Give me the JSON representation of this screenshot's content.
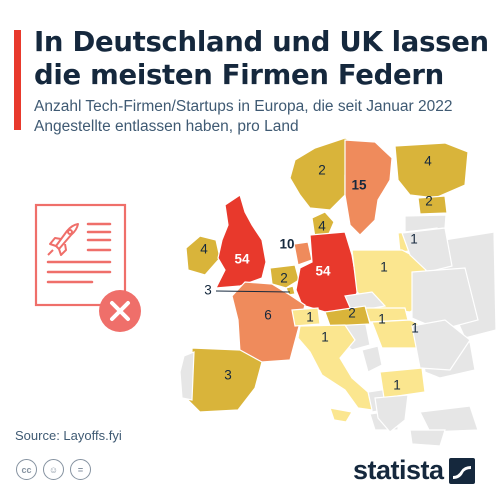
{
  "header": {
    "title": "In Deutschland und UK lassen die meisten Firmen Federn",
    "subtitle": "Anzahl Tech-Firmen/Startups in Europa, die seit Januar 2022 Angestellte entlassen haben, pro Land"
  },
  "map_data": {
    "type": "choropleth",
    "unit": "Anzahl Firmen",
    "regions": [
      {
        "country": "Norway",
        "value": 2
      },
      {
        "country": "Sweden",
        "value": 15
      },
      {
        "country": "Finland",
        "value": 4
      },
      {
        "country": "Estonia",
        "value": 2
      },
      {
        "country": "Ireland",
        "value": 4
      },
      {
        "country": "United Kingdom",
        "value": 54
      },
      {
        "country": "Denmark",
        "value": 4
      },
      {
        "country": "Netherlands",
        "value": 10
      },
      {
        "country": "Belgium",
        "value": 2
      },
      {
        "country": "Luxembourg",
        "value": 3
      },
      {
        "country": "Germany",
        "value": 54
      },
      {
        "country": "Lithuania",
        "value": 1
      },
      {
        "country": "Poland",
        "value": 1
      },
      {
        "country": "France",
        "value": 6
      },
      {
        "country": "Switzerland",
        "value": 1
      },
      {
        "country": "Austria",
        "value": 2
      },
      {
        "country": "Slovakia",
        "value": 1
      },
      {
        "country": "Italy",
        "value": 1
      },
      {
        "country": "Hungary",
        "value": 1
      },
      {
        "country": "Spain",
        "value": 3
      },
      {
        "country": "Bulgaria",
        "value": 1
      }
    ],
    "colors": {
      "high": "#e8392c",
      "medium_high": "#ef8b5c",
      "medium": "#d9b43a",
      "low": "#fbe68f",
      "no_data": "#e6e6e6"
    }
  },
  "footer": {
    "source": "Source: Layoffs.fyi",
    "license_icons": [
      "cc-icon",
      "person-icon",
      "equal-icon"
    ],
    "license_glyphs": [
      "cc",
      "☺",
      "="
    ],
    "brand": "statista"
  }
}
